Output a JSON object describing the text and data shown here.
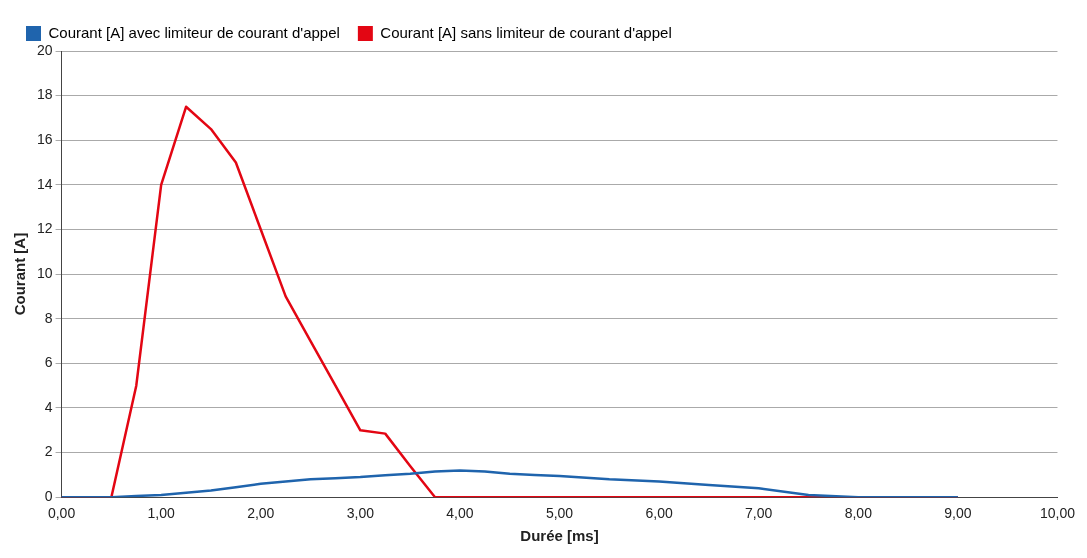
{
  "chart_data": {
    "type": "line",
    "xlabel": "Durée [ms]",
    "ylabel": "Courant [A]",
    "xlim": [
      0,
      10
    ],
    "xticks": [
      {
        "value": 0,
        "label": "0,00"
      },
      {
        "value": 1,
        "label": "1,00"
      },
      {
        "value": 2,
        "label": "2,00"
      },
      {
        "value": 3,
        "label": "3,00"
      },
      {
        "value": 4,
        "label": "4,00"
      },
      {
        "value": 5,
        "label": "5,00"
      },
      {
        "value": 6,
        "label": "6,00"
      },
      {
        "value": 7,
        "label": "7,00"
      },
      {
        "value": 8,
        "label": "8,00"
      },
      {
        "value": 9,
        "label": "9,00"
      },
      {
        "value": 10,
        "label": "10,00"
      }
    ],
    "ylim": [
      0,
      20
    ],
    "yticks": [
      0,
      2,
      4,
      6,
      8,
      10,
      12,
      14,
      16,
      18,
      20
    ],
    "grid": "y",
    "legend": "top left",
    "marker": "none",
    "line_style": "solid",
    "series": [
      {
        "name": "Courant [A] avec limiteur de courant d'appel",
        "color": "#1f64ad",
        "x": [
          0,
          0.25,
          0.5,
          0.75,
          1,
          1.25,
          1.5,
          1.75,
          2,
          2.25,
          2.5,
          2.75,
          3,
          3.25,
          3.5,
          3.75,
          4,
          4.25,
          4.5,
          4.75,
          5,
          5.5,
          6,
          6.5,
          7,
          7.5,
          8,
          8.5,
          9
        ],
        "values": [
          0,
          0,
          0,
          0.05,
          0.1,
          0.2,
          0.3,
          0.45,
          0.6,
          0.7,
          0.8,
          0.85,
          0.9,
          0.98,
          1.05,
          1.15,
          1.2,
          1.15,
          1.05,
          1,
          0.95,
          0.8,
          0.7,
          0.55,
          0.4,
          0.1,
          0,
          0,
          0
        ]
      },
      {
        "name": "Courant [A] sans limiteur de courant d'appel",
        "color": "#e30613",
        "x": [
          0,
          0.25,
          0.5,
          0.75,
          1,
          1.25,
          1.5,
          1.75,
          2,
          2.25,
          2.5,
          2.75,
          3,
          3.25,
          3.5,
          3.75,
          4,
          5,
          6,
          7,
          8,
          9
        ],
        "values": [
          0,
          0,
          0,
          5,
          14,
          17.5,
          16.5,
          15,
          12,
          9,
          7,
          5,
          3,
          2.85,
          1.4,
          0,
          0,
          0,
          0,
          0,
          0,
          0
        ]
      }
    ]
  }
}
